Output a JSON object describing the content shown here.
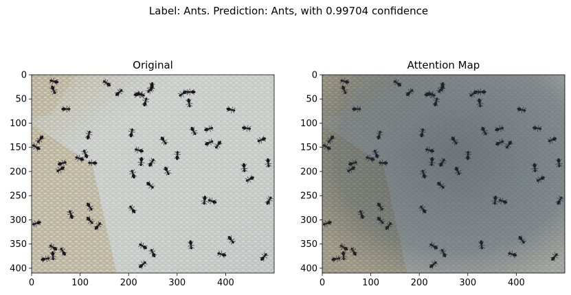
{
  "figure": {
    "suptitle": "Label: Ants. Prediction: Ants, with 0.99704 confidence"
  },
  "chart_data": [
    {
      "type": "image",
      "title": "Original",
      "xlim": [
        0,
        500
      ],
      "ylim": [
        410,
        0
      ],
      "x_ticks": [
        0,
        100,
        200,
        300,
        400
      ],
      "y_ticks": [
        0,
        50,
        100,
        150,
        200,
        250,
        300,
        350,
        400
      ],
      "xlabel": "",
      "ylabel": "",
      "image_content": "photo of black ants on white rice grains over a wooden surface"
    },
    {
      "type": "image",
      "title": "Attention Map",
      "xlim": [
        0,
        500
      ],
      "ylim": [
        410,
        0
      ],
      "x_ticks": [
        0,
        100,
        200,
        300,
        400
      ],
      "y_ticks": [
        0,
        50,
        100,
        150,
        200,
        250,
        300,
        350,
        400
      ],
      "xlabel": "",
      "ylabel": "",
      "image_content": "same photo darkened by attention overlay"
    }
  ],
  "colors": {
    "rice": "#c4c9c6",
    "wood": "#b9ad8f",
    "ant": "#1c1620",
    "shade": "#2f3d45"
  }
}
